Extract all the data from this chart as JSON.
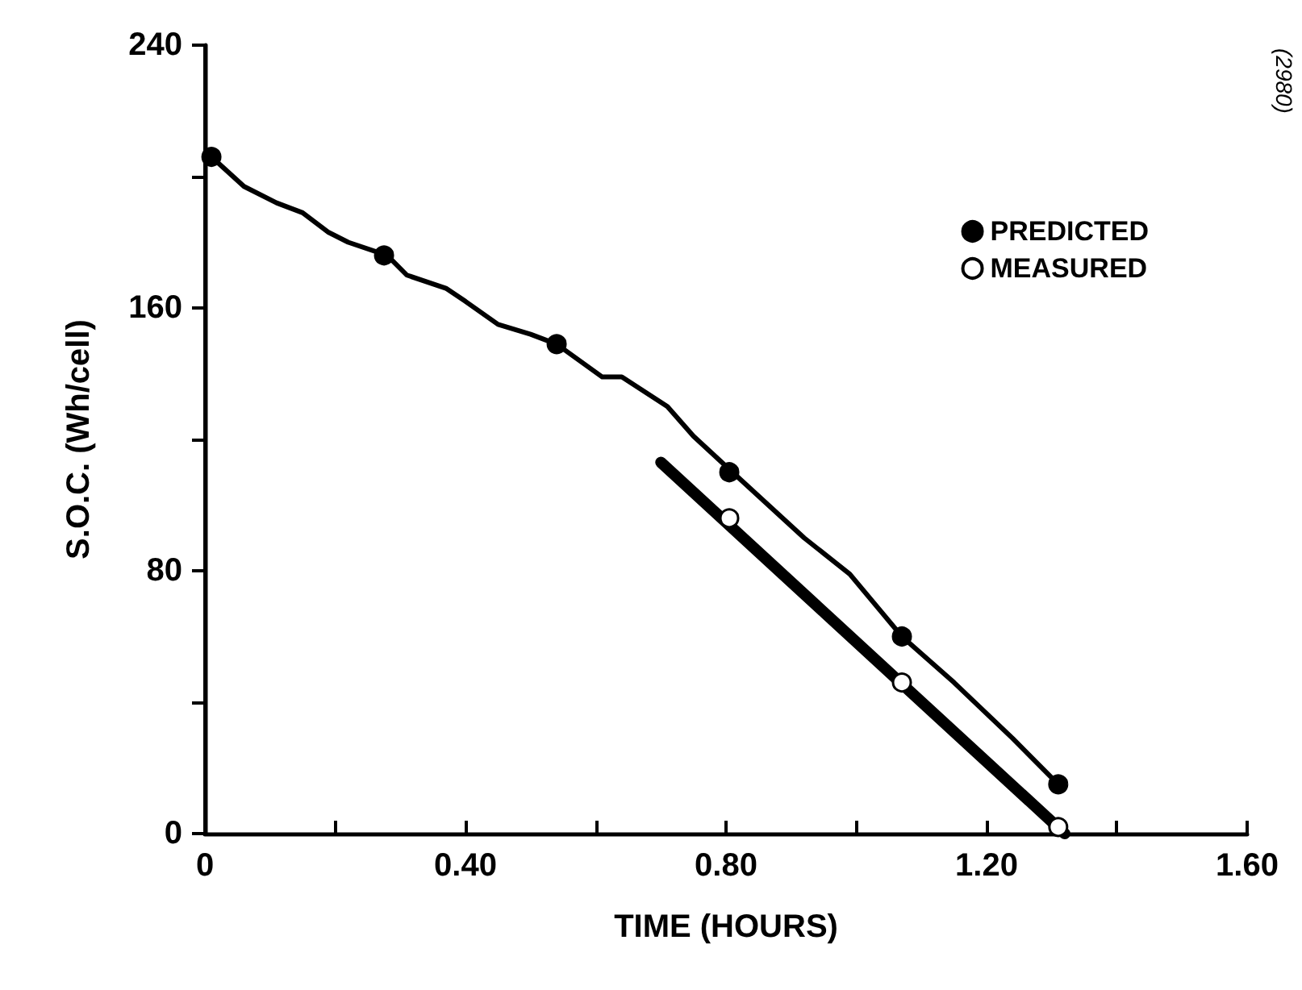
{
  "chart_data": {
    "type": "line",
    "xlabel": "TIME (HOURS)",
    "ylabel": "S.O.C. (Wh/cell)",
    "annotations": [
      "(2980)"
    ],
    "xlim": [
      0,
      1.6
    ],
    "xticks": [
      0,
      {
        "value": 0.2,
        "label": null
      },
      {
        "value": 0.4,
        "label": "0.40"
      },
      {
        "value": 0.6,
        "label": null
      },
      {
        "value": 0.8,
        "label": "0.80"
      },
      {
        "value": 1.0,
        "label": null
      },
      {
        "value": 1.2,
        "label": "1.20"
      },
      {
        "value": 1.4,
        "label": null
      },
      {
        "value": 1.6,
        "label": "1.60"
      }
    ],
    "ylim": [
      0,
      240
    ],
    "yticks": [
      0,
      {
        "value": 40,
        "label": null
      },
      80,
      {
        "value": 120,
        "label": null
      },
      160,
      {
        "value": 200,
        "label": null
      },
      240
    ],
    "grid": false,
    "legend": "top right",
    "series": [
      {
        "color": "#000000",
        "marker": "none",
        "x": [
          0.01,
          0.06,
          0.11,
          0.15,
          0.19,
          0.22,
          0.28,
          0.31,
          0.37,
          0.4,
          0.45,
          0.5,
          0.54,
          0.61,
          0.64,
          0.71,
          0.75,
          0.81,
          0.92,
          0.99,
          1.07,
          1.15,
          1.24,
          1.31
        ],
        "values": [
          206,
          197,
          192,
          189,
          183,
          180,
          176,
          170,
          166,
          162,
          155,
          152,
          149,
          139,
          139,
          130,
          121,
          110,
          90,
          79,
          60,
          46,
          29,
          15
        ]
      },
      {
        "color": "#000000",
        "marker": "none",
        "x": [
          0.7,
          1.32
        ],
        "values": [
          113,
          0
        ]
      },
      {
        "type": "scatter",
        "name": "PREDICTED",
        "color": "#000000",
        "marker": "circle",
        "x": [
          0.01,
          0.275,
          0.54,
          0.805,
          1.07,
          1.31
        ],
        "values": [
          206,
          176,
          149,
          110,
          60,
          15
        ]
      },
      {
        "type": "scatter",
        "name": "MEASURED",
        "color": "#ffffff",
        "marker": "circle",
        "x": [
          0.805,
          1.07,
          1.31
        ],
        "values": [
          96,
          46,
          2
        ]
      }
    ]
  }
}
